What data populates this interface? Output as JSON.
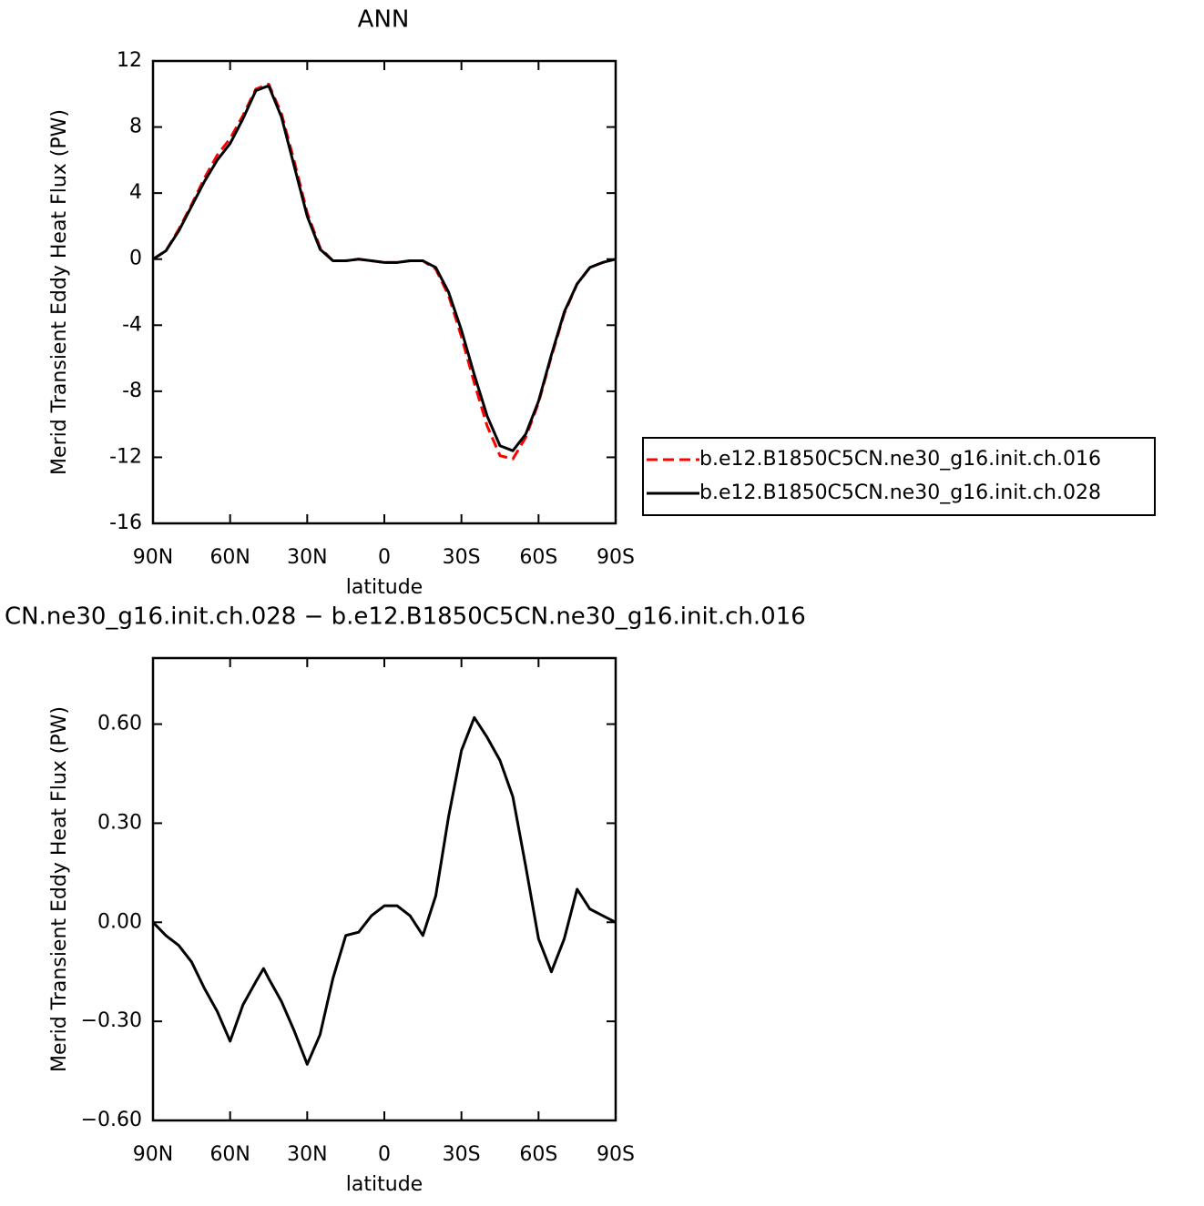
{
  "chart_data": [
    {
      "type": "line",
      "title": "ANN",
      "x_label": "latitude",
      "y_label": "Merid Transient Eddy Heat Flux (PW)",
      "x": [
        90,
        85,
        80,
        75,
        70,
        65,
        60,
        55,
        50,
        45,
        40,
        35,
        30,
        25,
        20,
        15,
        10,
        5,
        0,
        -5,
        -10,
        -15,
        -20,
        -25,
        -30,
        -35,
        -40,
        -45,
        -50,
        -55,
        -60,
        -65,
        -70,
        -75,
        -80,
        -85,
        -90
      ],
      "series": [
        {
          "name": "b.e12.B1850C5CN.ne30_g16.init.ch.016",
          "color": "#ff0000",
          "style": "dashed",
          "values": [
            0,
            0.5,
            1.8,
            3.3,
            4.9,
            6.3,
            7.3,
            8.7,
            10.3,
            10.6,
            8.8,
            5.9,
            2.8,
            0.7,
            -0.1,
            -0.1,
            0,
            -0.1,
            -0.2,
            -0.2,
            -0.1,
            -0.1,
            -0.6,
            -2.2,
            -4.7,
            -7.5,
            -10.1,
            -11.9,
            -12.1,
            -10.8,
            -8.7,
            -5.9,
            -3.3,
            -1.5,
            -0.5,
            -0.2,
            0
          ]
        },
        {
          "name": "b.e12.B1850C5CN.ne30_g16.init.ch.028",
          "color": "#000000",
          "style": "solid",
          "values": [
            0,
            0.5,
            1.7,
            3.2,
            4.7,
            6.0,
            7.0,
            8.5,
            10.2,
            10.5,
            8.6,
            5.6,
            2.6,
            0.6,
            -0.1,
            -0.1,
            0,
            -0.1,
            -0.2,
            -0.2,
            -0.1,
            -0.1,
            -0.5,
            -2.0,
            -4.3,
            -7.0,
            -9.5,
            -11.3,
            -11.6,
            -10.6,
            -8.6,
            -5.8,
            -3.2,
            -1.5,
            -0.5,
            -0.2,
            0
          ]
        }
      ],
      "xlim": [
        90,
        -90
      ],
      "xticks": [
        {
          "value": 90,
          "label": "90N"
        },
        {
          "value": 60,
          "label": "60N"
        },
        {
          "value": 30,
          "label": "30N"
        },
        0,
        {
          "value": -30,
          "label": "30S"
        },
        {
          "value": -60,
          "label": "60S"
        },
        {
          "value": -90,
          "label": "90S"
        }
      ],
      "ylim": [
        -16,
        12
      ],
      "yticks": [
        12,
        8,
        4,
        0,
        -4,
        -8,
        -12,
        -16
      ],
      "grid": false,
      "legend": "outside-right"
    },
    {
      "type": "line",
      "title": "CN.ne30_g16.init.ch.028 − b.e12.B1850C5CN.ne30_g16.init.ch.016",
      "x_label": "latitude",
      "y_label": "Merid Transient Eddy Heat Flux (PW)",
      "x": [
        90,
        85,
        80,
        75,
        70,
        65,
        60,
        55,
        50,
        47,
        45,
        40,
        35,
        30,
        25,
        20,
        15,
        10,
        5,
        0,
        -5,
        -10,
        -15,
        -20,
        -25,
        -30,
        -35,
        -40,
        -45,
        -50,
        -55,
        -60,
        -65,
        -70,
        -75,
        -80,
        -85,
        -90
      ],
      "values": [
        0,
        -0.04,
        -0.07,
        -0.12,
        -0.2,
        -0.27,
        -0.36,
        -0.25,
        -0.18,
        -0.14,
        -0.17,
        -0.24,
        -0.33,
        -0.43,
        -0.34,
        -0.17,
        -0.04,
        -0.03,
        0.02,
        0.05,
        0.05,
        0.02,
        -0.04,
        0.08,
        0.32,
        0.52,
        0.62,
        0.56,
        0.49,
        0.38,
        0.17,
        -0.05,
        -0.15,
        -0.05,
        0.1,
        0.04,
        0.02,
        0
      ],
      "color": "#000000",
      "xlim": [
        90,
        -90
      ],
      "xticks": [
        {
          "value": 90,
          "label": "90N"
        },
        {
          "value": 60,
          "label": "60N"
        },
        {
          "value": 30,
          "label": "30N"
        },
        0,
        {
          "value": -30,
          "label": "30S"
        },
        {
          "value": -60,
          "label": "60S"
        },
        {
          "value": -90,
          "label": "90S"
        }
      ],
      "ylim": [
        -0.6,
        0.8
      ],
      "yticks": [
        {
          "value": 0.6,
          "label": "0.60"
        },
        {
          "value": 0.3,
          "label": "0.30"
        },
        {
          "value": 0,
          "label": "0.00"
        },
        {
          "value": -0.3,
          "label": "−0.30"
        },
        {
          "value": -0.6,
          "label": "−0.60"
        }
      ],
      "grid": false
    }
  ]
}
